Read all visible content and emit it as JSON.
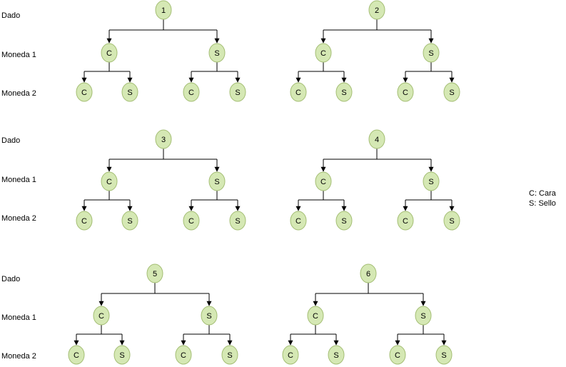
{
  "row_labels": {
    "die": "Dado",
    "coin1": "Moneda 1",
    "coin2": "Moneda 2"
  },
  "trees": [
    {
      "die": "1",
      "coin1": [
        "C",
        "S"
      ],
      "coin2": [
        [
          "C",
          "S"
        ],
        [
          "C",
          "S"
        ]
      ]
    },
    {
      "die": "2",
      "coin1": [
        "C",
        "S"
      ],
      "coin2": [
        [
          "C",
          "S"
        ],
        [
          "C",
          "S"
        ]
      ]
    },
    {
      "die": "3",
      "coin1": [
        "C",
        "S"
      ],
      "coin2": [
        [
          "C",
          "S"
        ],
        [
          "C",
          "S"
        ]
      ]
    },
    {
      "die": "4",
      "coin1": [
        "C",
        "S"
      ],
      "coin2": [
        [
          "C",
          "S"
        ],
        [
          "C",
          "S"
        ]
      ]
    },
    {
      "die": "5",
      "coin1": [
        "C",
        "S"
      ],
      "coin2": [
        [
          "C",
          "S"
        ],
        [
          "C",
          "S"
        ]
      ]
    },
    {
      "die": "6",
      "coin1": [
        "C",
        "S"
      ],
      "coin2": [
        [
          "C",
          "S"
        ],
        [
          "C",
          "S"
        ]
      ]
    }
  ],
  "legend": [
    "C: Cara",
    "S: Sello"
  ],
  "colors": {
    "node_fill": "#d5e8b4",
    "node_stroke": "#a4be74",
    "edge": "#000000"
  }
}
